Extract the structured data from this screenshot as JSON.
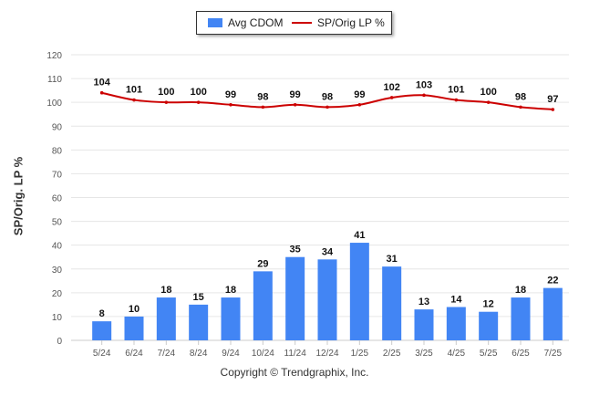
{
  "legend": {
    "bar_label": "Avg CDOM",
    "line_label": "SP/Orig LP %"
  },
  "colors": {
    "bar": "#4285f4",
    "line": "#cc0000",
    "grid": "#e6e6e6",
    "axis_text": "#555555"
  },
  "copyright": "Copyright © Trendgraphix, Inc.",
  "chart_data": {
    "type": "bar",
    "categories": [
      "5/24",
      "6/24",
      "7/24",
      "8/24",
      "9/24",
      "10/24",
      "11/24",
      "12/24",
      "1/25",
      "2/25",
      "3/25",
      "4/25",
      "5/25",
      "6/25",
      "7/25"
    ],
    "series": [
      {
        "name": "Avg CDOM",
        "type": "bar",
        "values": [
          8,
          10,
          18,
          15,
          18,
          29,
          35,
          34,
          41,
          31,
          13,
          14,
          12,
          18,
          22
        ]
      },
      {
        "name": "SP/Orig LP %",
        "type": "line",
        "values": [
          104,
          101,
          100,
          100,
          99,
          98,
          99,
          98,
          99,
          102,
          103,
          101,
          100,
          98,
          97
        ]
      }
    ],
    "ylabel": "SP/Orig. LP %",
    "ylim": [
      0,
      120
    ],
    "yticks": [
      0,
      10,
      20,
      30,
      40,
      50,
      60,
      70,
      80,
      90,
      100,
      110,
      120
    ],
    "grid": true,
    "legend_position": "top"
  }
}
